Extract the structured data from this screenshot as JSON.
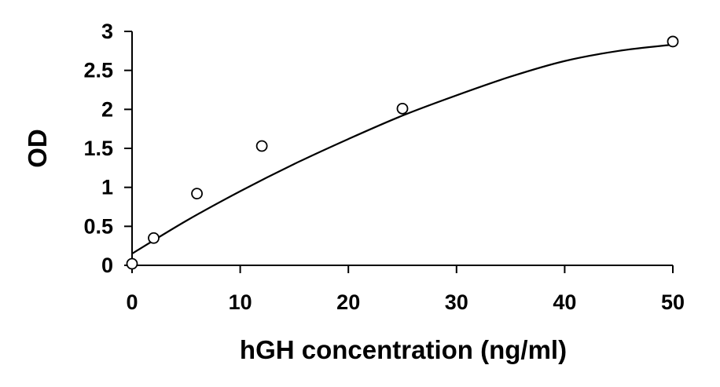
{
  "chart_data": {
    "type": "scatter",
    "title": "",
    "xlabel": "hGH concentration (ng/ml)",
    "ylabel": "OD",
    "xlim": [
      0,
      50
    ],
    "ylim": [
      0,
      3
    ],
    "xticks": [
      "0",
      "10",
      "20",
      "30",
      "40",
      "50"
    ],
    "yticks": [
      "0",
      "0.5",
      "1",
      "1.5",
      "2",
      "2.5",
      "3"
    ],
    "grid": false,
    "legend": "none",
    "series": [
      {
        "points": [
          {
            "x": 0,
            "y": 0.02
          },
          {
            "x": 2,
            "y": 0.35
          },
          {
            "x": 6,
            "y": 0.92
          },
          {
            "x": 12,
            "y": 1.53
          },
          {
            "x": 25,
            "y": 2.01
          },
          {
            "x": 50,
            "y": 2.87
          }
        ],
        "marker": "open-circle"
      }
    ],
    "fit_curve": {
      "type": "polynomial-order-2",
      "points": [
        {
          "x": 0,
          "y": 0.15
        },
        {
          "x": 5,
          "y": 0.57
        },
        {
          "x": 10,
          "y": 0.95
        },
        {
          "x": 15,
          "y": 1.3
        },
        {
          "x": 20,
          "y": 1.62
        },
        {
          "x": 25,
          "y": 1.92
        },
        {
          "x": 30,
          "y": 2.18
        },
        {
          "x": 35,
          "y": 2.42
        },
        {
          "x": 40,
          "y": 2.62
        },
        {
          "x": 45,
          "y": 2.75
        },
        {
          "x": 50,
          "y": 2.83
        }
      ]
    }
  }
}
